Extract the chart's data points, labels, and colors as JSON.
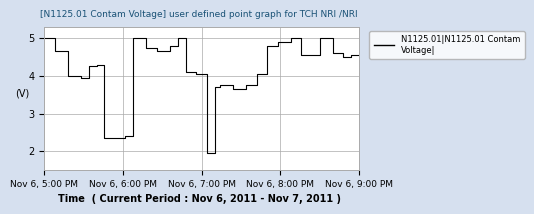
{
  "title": "[N1125.01 Contam Voltage] user defined point graph for TCH NRI /NRI",
  "xlabel": "Time  ( Current Period : Nov 6, 2011 - Nov 7, 2011 )",
  "ylabel": "(V)",
  "legend_label": "N1125.01|N1125.01 Contam\nVoltage|",
  "ylim": [
    1.5,
    5.3
  ],
  "yticks": [
    2,
    3,
    4,
    5
  ],
  "background_color": "#d6e0ef",
  "plot_bg_color": "#ffffff",
  "line_color": "#000000",
  "title_color": "#1a5276",
  "xtick_labels": [
    "Nov 6, 5:00 PM",
    "Nov 6, 6:00 PM",
    "Nov 6, 7:00 PM",
    "Nov 6, 8:00 PM",
    "Nov 6, 9:00 PM"
  ],
  "xtick_positions": [
    0,
    60,
    120,
    180,
    240
  ],
  "x_vals": [
    0,
    8,
    8,
    18,
    18,
    28,
    28,
    34,
    34,
    40,
    40,
    46,
    46,
    62,
    62,
    68,
    68,
    78,
    78,
    86,
    86,
    96,
    96,
    102,
    102,
    108,
    108,
    116,
    116,
    124,
    124,
    130,
    130,
    134,
    134,
    144,
    144,
    154,
    154,
    162,
    162,
    170,
    170,
    178,
    178,
    188,
    188,
    196,
    196,
    210,
    210,
    220,
    220,
    228,
    228,
    234,
    234,
    240
  ],
  "y_vals": [
    5.0,
    5.0,
    4.65,
    4.65,
    4.0,
    4.0,
    3.95,
    3.95,
    4.25,
    4.25,
    4.3,
    4.3,
    2.35,
    2.35,
    2.4,
    2.4,
    5.0,
    5.0,
    4.75,
    4.75,
    4.65,
    4.65,
    4.8,
    4.8,
    5.0,
    5.0,
    4.1,
    4.1,
    4.05,
    4.05,
    1.95,
    1.95,
    3.7,
    3.7,
    3.75,
    3.75,
    3.65,
    3.65,
    3.75,
    3.75,
    4.05,
    4.05,
    4.8,
    4.8,
    4.9,
    4.9,
    5.0,
    5.0,
    4.55,
    4.55,
    5.0,
    5.0,
    4.6,
    4.6,
    4.5,
    4.5,
    4.55,
    4.55
  ]
}
